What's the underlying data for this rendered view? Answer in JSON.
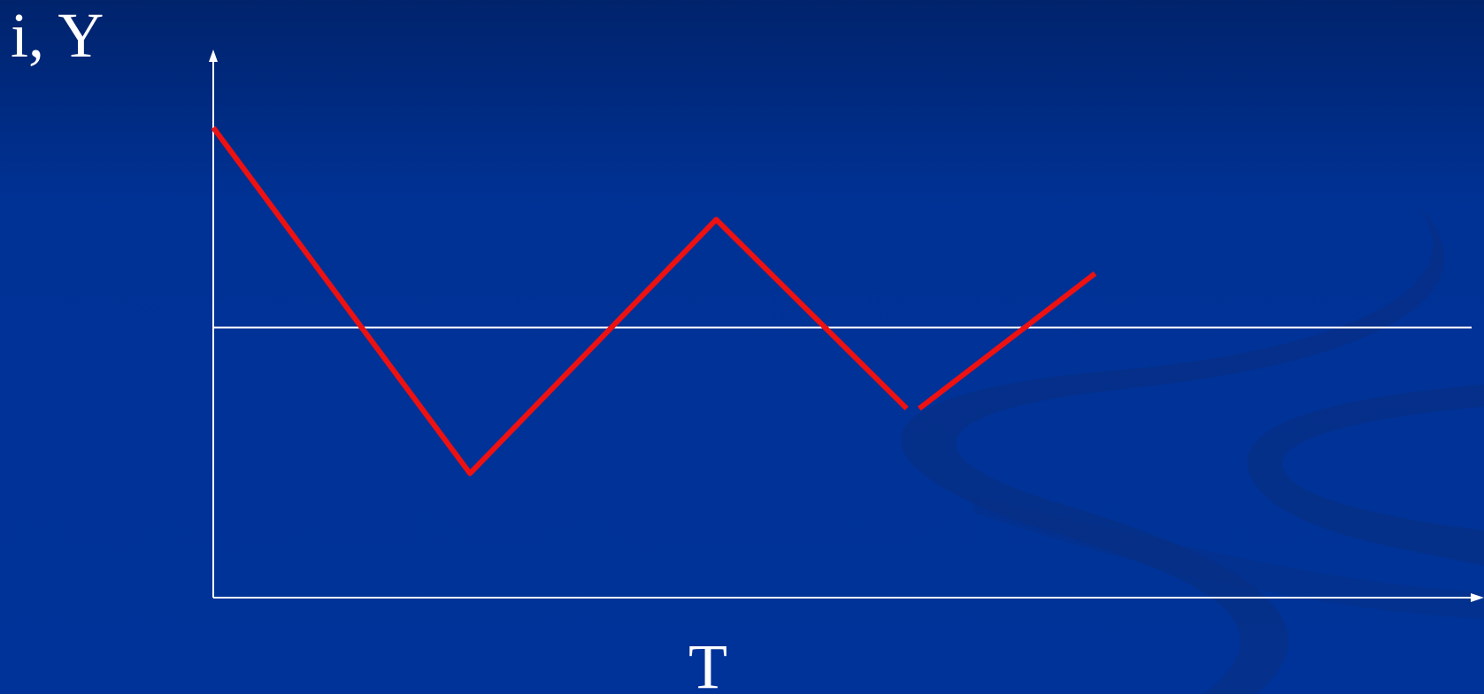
{
  "colors": {
    "background": "#003399",
    "axis": "#ffffff",
    "series": "#ee1111",
    "decor": "#0a2d80"
  },
  "chart_data": {
    "type": "line",
    "title": "",
    "xlabel": "T",
    "ylabel": "i, Y",
    "xlim": [
      0,
      1000
    ],
    "ylim": [
      0,
      100
    ],
    "grid": false,
    "reference_line": {
      "y": 50
    },
    "series": [
      {
        "name": "",
        "x": [
          0,
          244,
          478,
          659
        ],
        "y": [
          87,
          23,
          70,
          35
        ]
      },
      {
        "name": "",
        "x": [
          671,
          838
        ],
        "y": [
          35,
          60
        ]
      }
    ]
  }
}
